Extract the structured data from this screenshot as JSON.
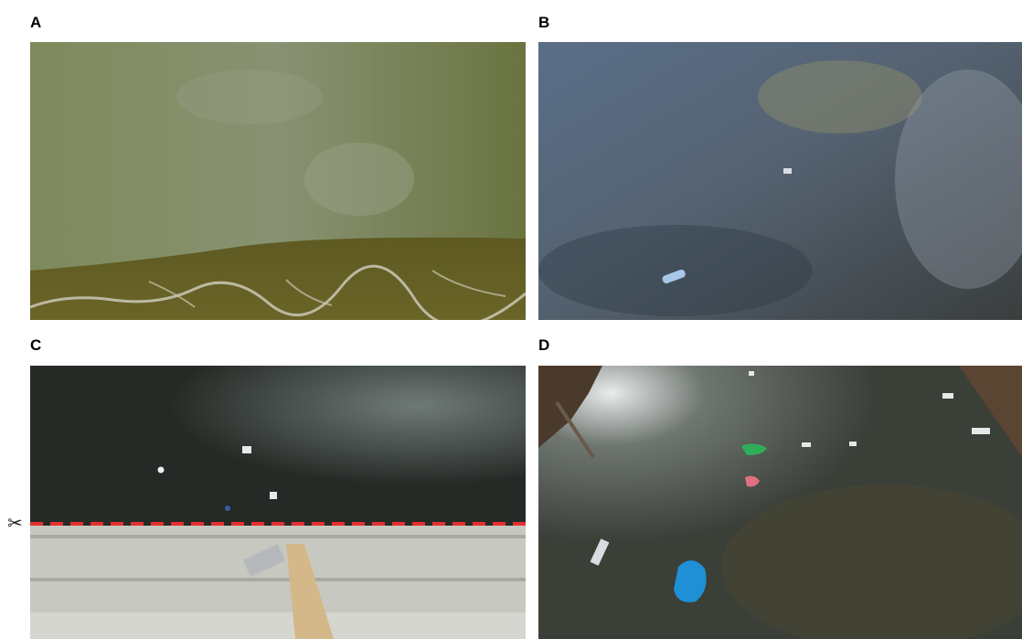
{
  "panels": [
    {
      "label": "A"
    },
    {
      "label": "B"
    },
    {
      "label": "C"
    },
    {
      "label": "D"
    }
  ],
  "cut_marker": {
    "icon": "scissors-icon",
    "glyph": "✂",
    "line_color": "#e53030"
  },
  "colors": {
    "panel_a_water": "#6f7a45",
    "panel_b_water": "#3f4a55",
    "panel_c_water": "#262a26",
    "panel_d_water": "#3a3f38",
    "bag_blue": "#1f8fd6",
    "bag_green": "#2fae5a"
  }
}
